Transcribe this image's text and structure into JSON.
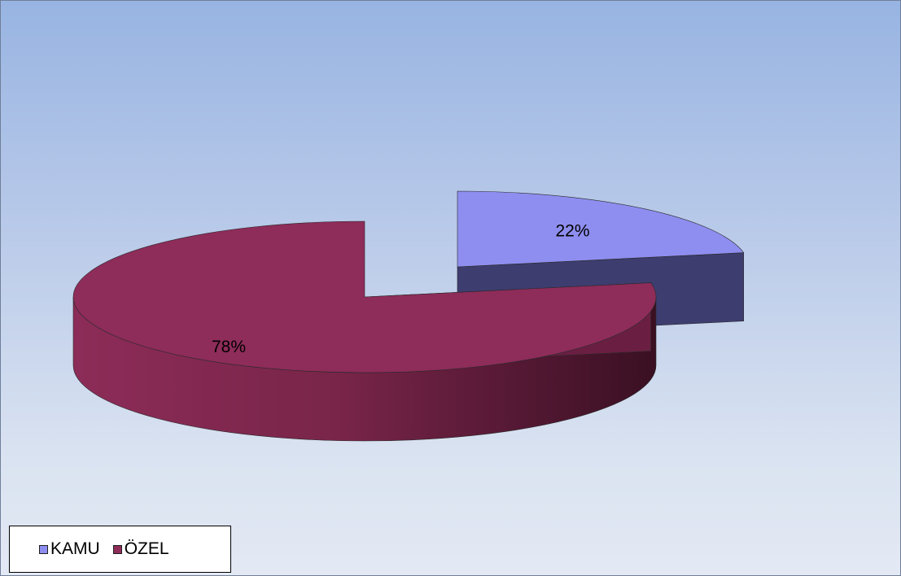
{
  "chart_data": {
    "type": "pie",
    "style": "3d-exploded",
    "categories": [
      "KAMU",
      "ÖZEL"
    ],
    "values": [
      22,
      78
    ],
    "data_labels": [
      "22%",
      "78%"
    ],
    "colors": [
      "#8e8ef0",
      "#8e2c5a"
    ],
    "side_colors": [
      "#3e3d70",
      "#8e2c5a"
    ],
    "legend_position": "bottom-left",
    "title": ""
  },
  "legend": {
    "items": [
      {
        "label": "KAMU",
        "color": "#8e8ef0"
      },
      {
        "label": "ÖZEL",
        "color": "#8e2c5a"
      }
    ]
  }
}
